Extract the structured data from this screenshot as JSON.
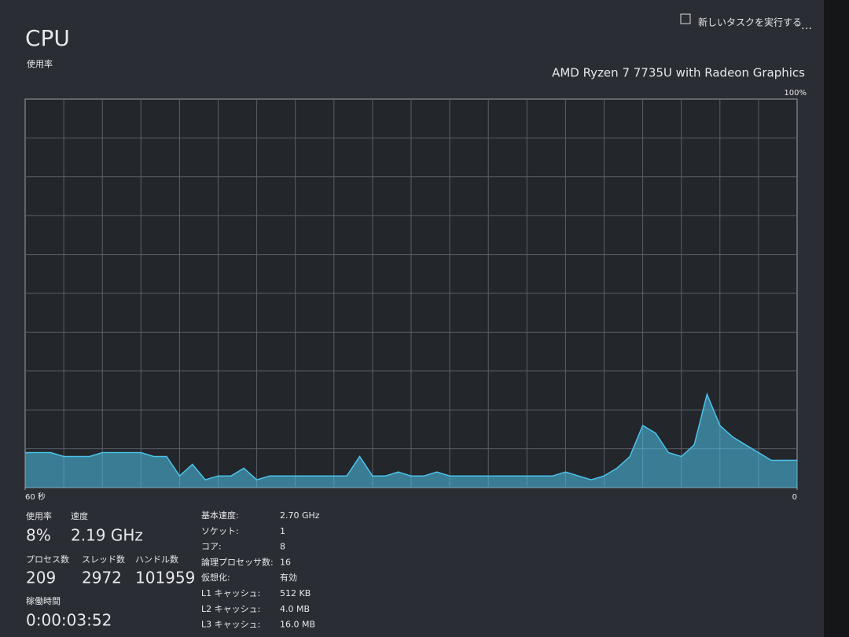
{
  "header": {
    "title": "CPU",
    "action": "新しいタスクを実行する",
    "processor": "AMD Ryzen 7 7735U with Radeon Graphics",
    "graph_label": "使用率"
  },
  "graph": {
    "type": "area",
    "color": "#4cc2ea",
    "x": [
      60,
      59,
      58,
      57,
      56,
      55,
      54,
      53,
      52,
      51,
      50,
      49,
      48,
      47,
      46,
      45,
      44,
      43,
      42,
      41,
      40,
      39,
      38,
      37,
      36,
      35,
      34,
      33,
      32,
      31,
      30,
      29,
      28,
      27,
      26,
      25,
      24,
      23,
      22,
      21,
      20,
      19,
      18,
      17,
      16,
      15,
      14,
      13,
      12,
      11,
      10,
      9,
      8,
      7,
      6,
      5,
      4,
      3,
      2,
      1,
      0
    ],
    "values": [
      9,
      9,
      9,
      8,
      8,
      8,
      9,
      9,
      9,
      9,
      8,
      8,
      3,
      6,
      2,
      3,
      3,
      5,
      2,
      3,
      3,
      3,
      3,
      3,
      3,
      3,
      8,
      3,
      3,
      4,
      3,
      3,
      4,
      3,
      3,
      3,
      3,
      3,
      3,
      3,
      3,
      3,
      4,
      3,
      2,
      3,
      5,
      8,
      16,
      14,
      9,
      8,
      11,
      24,
      16,
      13,
      11,
      9,
      7,
      7,
      7
    ],
    "xlim": [
      60,
      0
    ],
    "ylim": [
      0,
      100
    ],
    "xticks": [
      {
        "value": 60,
        "label": "60 秒"
      },
      0
    ],
    "yticks": [
      {
        "value": 100,
        "label": "100%"
      }
    ],
    "grid_rows": 10,
    "grid_columns": 20
  },
  "stats": [
    {
      "label": "使用率",
      "value": "8%"
    },
    {
      "label": "速度",
      "value": "2.19 GHz"
    },
    {
      "label": "プロセス数",
      "value": "209"
    },
    {
      "label": "スレッド数",
      "value": "2972"
    },
    {
      "label": "ハンドル数",
      "value": "101959"
    },
    {
      "label": "稼働時間",
      "value": "0:00:03:52"
    }
  ],
  "details": [
    {
      "label": "基本速度:",
      "value": "2.70 GHz"
    },
    {
      "label": "ソケット:",
      "value": "1"
    },
    {
      "label": "コア:",
      "value": "8"
    },
    {
      "label": "論理プロセッサ数:",
      "value": "16"
    },
    {
      "label": "仮想化:",
      "value": "有効"
    },
    {
      "label": "L1 キャッシュ:",
      "value": "512 KB"
    },
    {
      "label": "L2 キャッシュ:",
      "value": "4.0 MB"
    },
    {
      "label": "L3 キャッシュ:",
      "value": "16.0 MB"
    }
  ]
}
